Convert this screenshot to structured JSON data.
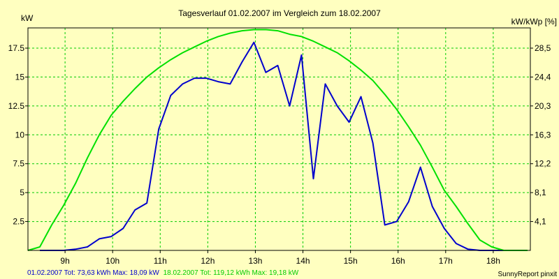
{
  "chart_data": {
    "type": "line",
    "title": "Tagesverlauf 01.02.2007 im Vergleich zum 18.02.2007",
    "ylabel_left": "kW",
    "ylabel_right": "kW/kWp [%]",
    "x_ticks": [
      "9h",
      "10h",
      "11h",
      "12h",
      "13h",
      "14h",
      "15h",
      "16h",
      "17h",
      "18h"
    ],
    "x_tick_values": [
      9,
      10,
      11,
      12,
      13,
      14,
      15,
      16,
      17,
      18
    ],
    "xlim": [
      8.22,
      18.78
    ],
    "ylim": [
      0,
      19.25
    ],
    "y_ticks_left": [
      "2.5",
      "5",
      "7.5",
      "10",
      "12.5",
      "15",
      "17.5"
    ],
    "y_tick_values_left": [
      2.5,
      5,
      7.5,
      10,
      12.5,
      15,
      17.5
    ],
    "y_ticks_right": [
      "4,1",
      "8,1",
      "12,2",
      "16,3",
      "20,3",
      "24,4",
      "28,5"
    ],
    "grid": true,
    "series": [
      {
        "name": "01.02.2007",
        "color": "#0000cc",
        "x": [
          8.47,
          8.72,
          8.97,
          9.22,
          9.47,
          9.72,
          9.97,
          10.22,
          10.47,
          10.72,
          10.97,
          11.22,
          11.47,
          11.72,
          11.97,
          12.22,
          12.47,
          12.72,
          12.97,
          13.22,
          13.47,
          13.72,
          13.97,
          14.22,
          14.47,
          14.72,
          14.97,
          15.22,
          15.47,
          15.72,
          15.97,
          16.22,
          16.47,
          16.72,
          16.97,
          17.22,
          17.47,
          17.72,
          17.97,
          18.22,
          18.47
        ],
        "y": [
          0,
          0,
          0,
          0.1,
          0.3,
          1.0,
          1.2,
          1.9,
          3.5,
          4.1,
          10.5,
          13.4,
          14.4,
          14.9,
          14.9,
          14.6,
          14.4,
          16.3,
          18.0,
          15.4,
          16.0,
          12.5,
          16.9,
          6.2,
          14.4,
          12.5,
          11.1,
          13.3,
          9.3,
          2.2,
          2.5,
          4.2,
          7.2,
          3.8,
          1.9,
          0.6,
          0.1,
          0,
          0,
          0,
          0
        ]
      },
      {
        "name": "18.02.2007",
        "color": "#00e000",
        "x": [
          8.22,
          8.47,
          8.72,
          8.97,
          9.22,
          9.47,
          9.72,
          9.97,
          10.22,
          10.47,
          10.72,
          10.97,
          11.22,
          11.47,
          11.72,
          11.97,
          12.22,
          12.47,
          12.72,
          12.97,
          13.22,
          13.47,
          13.72,
          13.97,
          14.22,
          14.47,
          14.72,
          14.97,
          15.22,
          15.47,
          15.72,
          15.97,
          16.22,
          16.47,
          16.72,
          16.97,
          17.22,
          17.47,
          17.72,
          17.97,
          18.22,
          18.47,
          18.72
        ],
        "y": [
          0,
          0.3,
          2.2,
          3.9,
          5.8,
          8.0,
          10.0,
          11.7,
          12.9,
          14.0,
          15.0,
          15.8,
          16.5,
          17.1,
          17.6,
          18.1,
          18.5,
          18.8,
          19.0,
          19.1,
          19.1,
          19.0,
          18.7,
          18.5,
          18.1,
          17.6,
          17.1,
          16.4,
          15.6,
          14.7,
          13.5,
          12.2,
          10.7,
          9.1,
          7.2,
          5.2,
          3.8,
          2.3,
          0.9,
          0.3,
          0,
          0,
          0
        ]
      }
    ],
    "footer": {
      "series1_text": "01.02.2007 Tot: 73,63 kWh Max: 18,09 kW",
      "series2_text": "18.02.2007 Tot: 119,12 kWh Max: 19,18 kW",
      "credit": "SunnyReport pinxit"
    },
    "colors": {
      "background": "#ffffc0",
      "grid": "#00cc00",
      "axis": "#000000",
      "text": "#000000"
    }
  }
}
